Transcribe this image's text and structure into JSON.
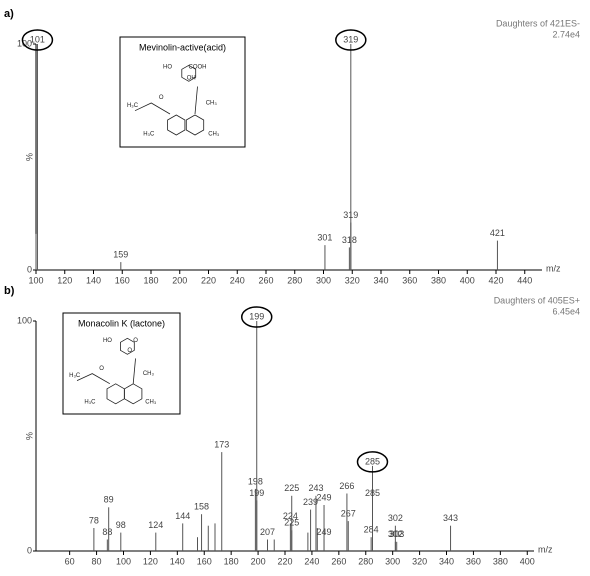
{
  "chart_data": [
    {
      "type": "stem",
      "label": "a)",
      "title": "Daughters of 421ES-",
      "subtitle": "2.74e4",
      "xlabel": "m/z",
      "ylabel": "%",
      "inset": {
        "title": "Mevinolin-active(acid)",
        "atoms": [
          "HO",
          "COOH",
          "OH",
          "O",
          "H₃C",
          "CH₃",
          "H₃C",
          "CH₃"
        ]
      },
      "x": [
        100,
        101,
        159,
        301,
        318,
        319,
        319,
        421
      ],
      "values": [
        16,
        100,
        3.5,
        11,
        10,
        100,
        21,
        13
      ],
      "peak_labels": [
        null,
        101,
        159,
        301,
        318,
        319,
        319,
        421
      ],
      "circled": [
        false,
        true,
        false,
        false,
        false,
        true,
        false,
        false
      ],
      "color": "#555555",
      "xlim": [
        100,
        452
      ],
      "xticks": [
        100,
        120,
        140,
        160,
        180,
        200,
        220,
        240,
        260,
        280,
        300,
        320,
        340,
        360,
        380,
        400,
        420,
        440
      ],
      "ylim": [
        0,
        100
      ],
      "yticks": [
        0,
        100
      ]
    },
    {
      "type": "stem",
      "label": "b)",
      "title": "Daughters of 405ES+",
      "subtitle": "6.45e4",
      "xlabel": "m/z",
      "ylabel": "%",
      "inset": {
        "title": "Monacolin K (lactone)",
        "atoms": [
          "HO",
          "O",
          "O",
          "O",
          "H₃C",
          "CH₃",
          "H₃C",
          "CH₃"
        ]
      },
      "x": [
        78,
        88,
        89,
        98,
        124,
        144,
        155,
        158,
        163,
        168,
        173,
        198,
        199,
        199,
        207,
        212,
        224,
        225,
        225,
        237,
        239,
        243,
        244,
        249,
        249,
        266,
        267,
        284,
        285,
        285,
        302,
        302,
        303,
        343
      ],
      "values": [
        10,
        5,
        19,
        8,
        8,
        12,
        6,
        16,
        11,
        12,
        43,
        27,
        100,
        22,
        5,
        5,
        12,
        9,
        24,
        8,
        18,
        24,
        10,
        20,
        5,
        25,
        13,
        6,
        37,
        22,
        11,
        4,
        4,
        11
      ],
      "peak_labels": [
        78,
        88,
        89,
        98,
        124,
        144,
        null,
        158,
        null,
        null,
        173,
        198,
        199,
        199,
        207,
        null,
        224,
        225,
        225,
        null,
        239,
        243,
        null,
        249,
        249,
        266,
        267,
        284,
        285,
        285,
        302,
        302,
        303,
        343
      ],
      "circled": [
        false,
        false,
        false,
        false,
        false,
        false,
        false,
        false,
        false,
        false,
        false,
        false,
        true,
        false,
        false,
        false,
        false,
        false,
        false,
        false,
        false,
        false,
        false,
        false,
        false,
        false,
        false,
        false,
        true,
        false,
        false,
        false,
        false,
        false
      ],
      "color": "#555555",
      "xlim": [
        35,
        405
      ],
      "xticks": [
        60,
        80,
        100,
        120,
        140,
        160,
        180,
        200,
        220,
        240,
        260,
        280,
        300,
        320,
        340,
        360,
        380,
        400
      ],
      "ylim": [
        0,
        100
      ],
      "yticks": [
        0,
        100
      ]
    }
  ]
}
